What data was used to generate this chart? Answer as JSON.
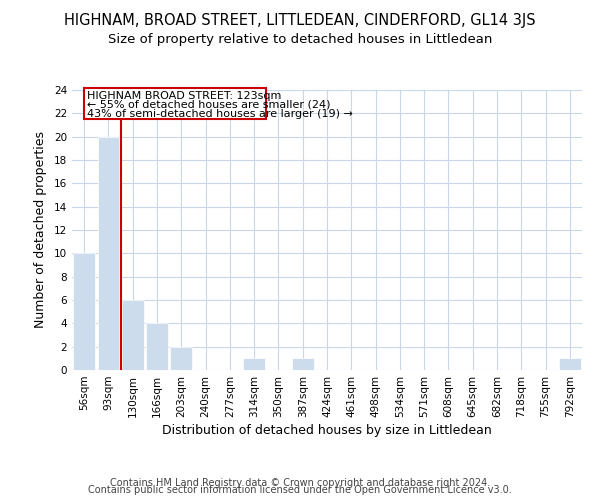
{
  "title": "HIGHNAM, BROAD STREET, LITTLEDEAN, CINDERFORD, GL14 3JS",
  "subtitle": "Size of property relative to detached houses in Littledean",
  "xlabel": "Distribution of detached houses by size in Littledean",
  "ylabel": "Number of detached properties",
  "bins": [
    "56sqm",
    "93sqm",
    "130sqm",
    "166sqm",
    "203sqm",
    "240sqm",
    "277sqm",
    "314sqm",
    "350sqm",
    "387sqm",
    "424sqm",
    "461sqm",
    "498sqm",
    "534sqm",
    "571sqm",
    "608sqm",
    "645sqm",
    "682sqm",
    "718sqm",
    "755sqm",
    "792sqm"
  ],
  "values": [
    10,
    20,
    6,
    4,
    2,
    0,
    0,
    1,
    0,
    1,
    0,
    0,
    0,
    0,
    0,
    0,
    0,
    0,
    0,
    0,
    1
  ],
  "bar_color": "#ccdcec",
  "bar_edge_color": "#ffffff",
  "red_line_x": 1.5,
  "annotation_line1": "HIGHNAM BROAD STREET: 123sqm",
  "annotation_line2": "← 55% of detached houses are smaller (24)",
  "annotation_line3": "43% of semi-detached houses are larger (19) →",
  "annotation_box_color": "#ffffff",
  "annotation_box_edge_color": "#cc0000",
  "ylim": [
    0,
    24
  ],
  "yticks": [
    0,
    2,
    4,
    6,
    8,
    10,
    12,
    14,
    16,
    18,
    20,
    22,
    24
  ],
  "footer1": "Contains HM Land Registry data © Crown copyright and database right 2024.",
  "footer2": "Contains public sector information licensed under the Open Government Licence v3.0.",
  "background_color": "#ffffff",
  "grid_color": "#c8d8e8",
  "title_fontsize": 10.5,
  "subtitle_fontsize": 9.5,
  "axis_label_fontsize": 9,
  "tick_fontsize": 7.5,
  "annotation_fontsize": 8,
  "footer_fontsize": 7
}
